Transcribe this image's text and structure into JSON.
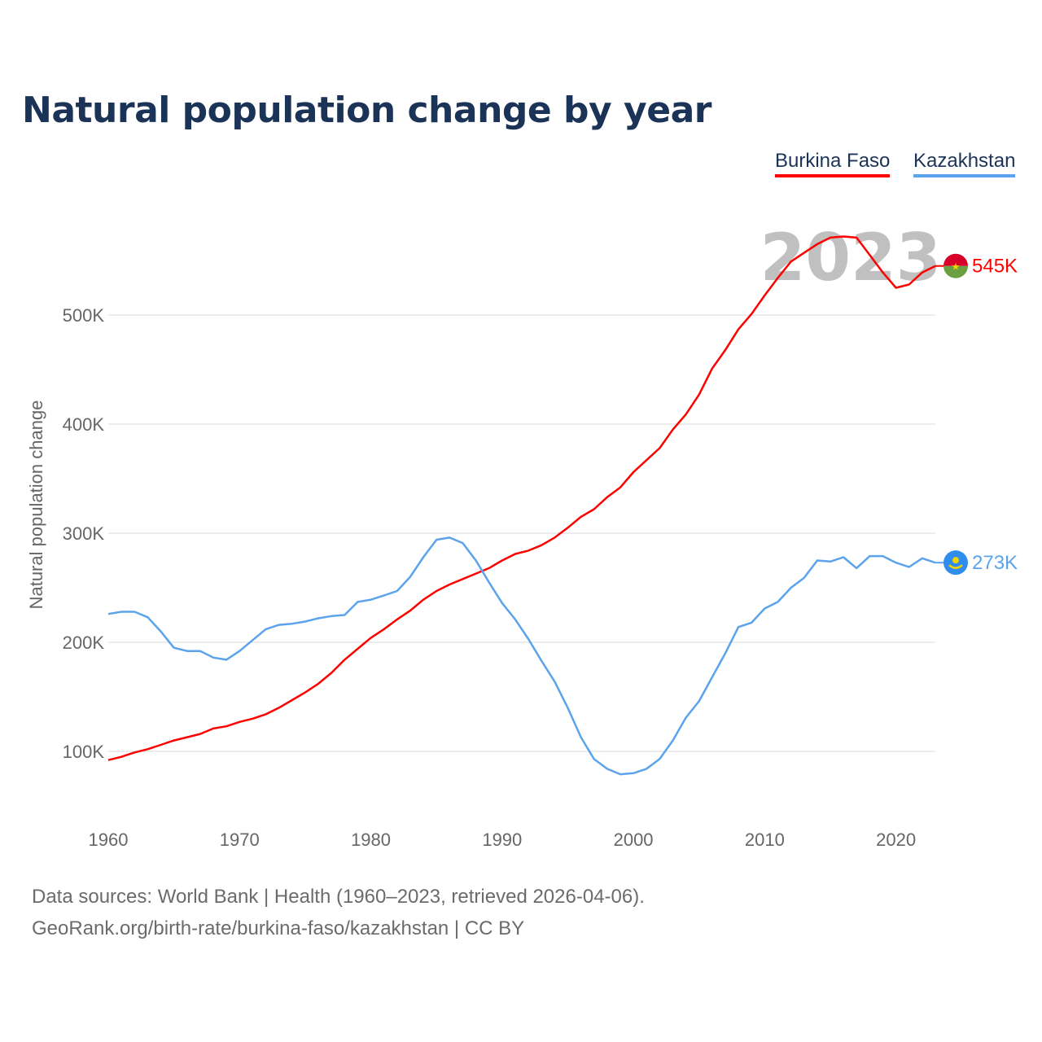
{
  "title": "Natural population change by year",
  "legend": [
    {
      "label": "Burkina Faso",
      "color": "#ff0000"
    },
    {
      "label": "Kazakhstan",
      "color": "#5ba3ec"
    }
  ],
  "footer": {
    "line1": "Data sources: World Bank | Health (1960–2023, retrieved 2026-04-06).",
    "line2": "GeoRank.org/birth-rate/burkina-faso/kazakhstan | CC BY"
  },
  "chart_data": {
    "type": "line",
    "title": "Natural population change by year",
    "xlabel": "",
    "ylabel": "Natural population change",
    "year_watermark": "2023",
    "xlim": [
      1960,
      2023
    ],
    "xticks": [
      1960,
      1970,
      1980,
      1990,
      2000,
      2010,
      2020
    ],
    "yticks": [
      100,
      200,
      300,
      400,
      500
    ],
    "ytick_labels": [
      "100K",
      "200K",
      "300K",
      "400K",
      "500K"
    ],
    "grid": true,
    "legend_position": "top-right",
    "x": [
      1960,
      1961,
      1962,
      1963,
      1964,
      1965,
      1966,
      1967,
      1968,
      1969,
      1970,
      1971,
      1972,
      1973,
      1974,
      1975,
      1976,
      1977,
      1978,
      1979,
      1980,
      1981,
      1982,
      1983,
      1984,
      1985,
      1986,
      1987,
      1988,
      1989,
      1990,
      1991,
      1992,
      1993,
      1994,
      1995,
      1996,
      1997,
      1998,
      1999,
      2000,
      2001,
      2002,
      2003,
      2004,
      2005,
      2006,
      2007,
      2008,
      2009,
      2010,
      2011,
      2012,
      2013,
      2014,
      2015,
      2016,
      2017,
      2018,
      2019,
      2020,
      2021,
      2022,
      2023
    ],
    "series": [
      {
        "name": "Burkina Faso",
        "color": "#ff0000",
        "end_label": "545K",
        "flag": "burkina-faso",
        "values": [
          92,
          95,
          99,
          102,
          106,
          110,
          113,
          116,
          121,
          123,
          127,
          130,
          134,
          140,
          147,
          154,
          162,
          172,
          184,
          194,
          204,
          212,
          221,
          229,
          239,
          247,
          253,
          258,
          263,
          268,
          275,
          281,
          284,
          289,
          296,
          305,
          315,
          322,
          333,
          342,
          356,
          367,
          378,
          395,
          409,
          427,
          451,
          468,
          487,
          501,
          518,
          534,
          549,
          557,
          565,
          571,
          572,
          571,
          555,
          539,
          525,
          528,
          539,
          545
        ]
      },
      {
        "name": "Kazakhstan",
        "color": "#5ba3ec",
        "end_label": "273K",
        "flag": "kazakhstan",
        "values": [
          226,
          228,
          228,
          223,
          210,
          195,
          192,
          192,
          186,
          184,
          192,
          202,
          212,
          216,
          217,
          219,
          222,
          224,
          225,
          237,
          239,
          243,
          247,
          260,
          278,
          294,
          296,
          291,
          275,
          255,
          236,
          221,
          203,
          183,
          164,
          140,
          113,
          93,
          84,
          79,
          80,
          84,
          93,
          110,
          131,
          146,
          168,
          190,
          214,
          218,
          231,
          237,
          250,
          259,
          275,
          274,
          278,
          268,
          279,
          279,
          273,
          269,
          277,
          273
        ]
      }
    ]
  }
}
